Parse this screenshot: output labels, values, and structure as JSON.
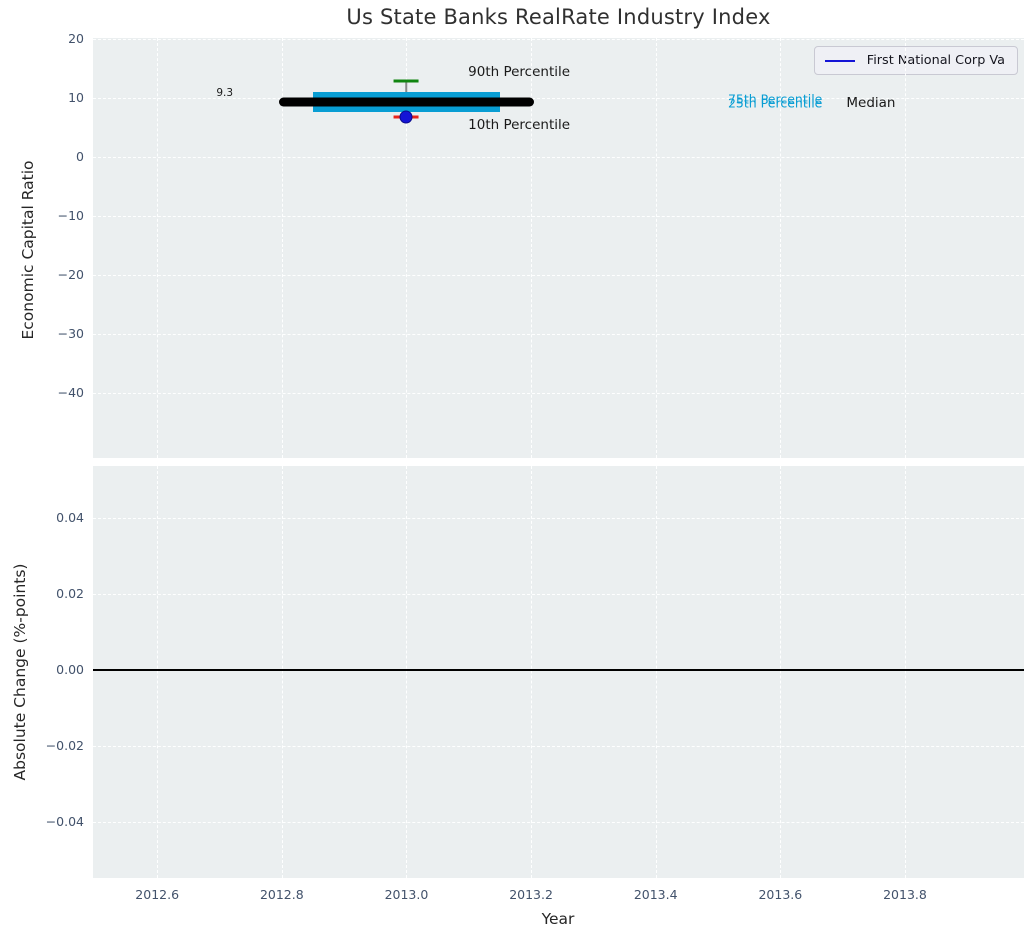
{
  "title": "Us State Banks RealRate Industry Index",
  "legend": {
    "label": "First National Corp Va",
    "line_color": "#1414d6"
  },
  "colors": {
    "plot_background": "#ebeff0",
    "grid": "#ffffff",
    "tick_label": "#42526b",
    "title": "#303030",
    "box_fill": "#089dd3",
    "median_line": "#000000",
    "whisker": "#888888",
    "cap_upper": "#108510",
    "cap_lower": "#e8251c",
    "point": "#1414d6",
    "zero_line": "#000000",
    "percentile_label": "#089dd3"
  },
  "chart_data": [
    {
      "type": "boxplot",
      "title": "Us State Banks RealRate Industry Index",
      "xlabel": "Year",
      "ylabel": "Economic Capital Ratio",
      "xlim": [
        2012.497,
        2013.991
      ],
      "ylim": [
        -51.0,
        20.2
      ],
      "grid": true,
      "legend_position": "upper right",
      "xtick_values": [
        2012.6,
        2012.8,
        2013.0,
        2013.2,
        2013.4,
        2013.6,
        2013.8
      ],
      "xtick_labels": [
        "2012.6",
        "2012.8",
        "2013.0",
        "2013.2",
        "2013.4",
        "2013.6",
        "2013.8"
      ],
      "ytick_values": [
        20,
        10,
        0,
        -10,
        -20,
        -30,
        -40
      ],
      "ytick_labels": [
        "20",
        "10",
        "0",
        "−10",
        "−20",
        "−30",
        "−40"
      ],
      "box": {
        "x": 2013.0,
        "median": 9.3,
        "median_span": [
          2012.795,
          2013.205
        ],
        "q1": 7.6,
        "q3": 11.0,
        "box_span": [
          2012.85,
          2013.15
        ],
        "p10": 6.8,
        "p90": 12.9,
        "cap_halfwidth": 0.02
      },
      "series": [
        {
          "name": "First National Corp Va",
          "x": [
            2013.0
          ],
          "y": [
            6.8
          ]
        }
      ],
      "annotations": [
        {
          "name": "median-value-label",
          "text": "9.3",
          "x": 2012.695,
          "y": 10.9,
          "color": "#1a1a1a",
          "size": 10.5
        },
        {
          "name": "p90-label",
          "text": "90th Percentile",
          "x": 2013.099,
          "y": 14.4,
          "color": "#1a1a1a",
          "size": 13.5
        },
        {
          "name": "p10-label",
          "text": "10th Percentile",
          "x": 2013.099,
          "y": 5.4,
          "color": "#1a1a1a",
          "size": 13.5
        },
        {
          "name": "p75-label",
          "text": "75th Percentile",
          "x": 2013.516,
          "y": 9.8,
          "color": "#089dd3",
          "size": 12.5
        },
        {
          "name": "p25-label",
          "text": "25th Percentile",
          "x": 2013.516,
          "y": 9.2,
          "color": "#089dd3",
          "size": 12.5
        },
        {
          "name": "median-label",
          "text": "Median",
          "x": 2013.706,
          "y": 9.25,
          "color": "#1a1a1a",
          "size": 13.5
        }
      ]
    },
    {
      "type": "line",
      "xlabel": "Year",
      "ylabel": "Absolute Change (%-points)",
      "xlim": [
        2012.497,
        2013.991
      ],
      "ylim": [
        -0.0547,
        0.0537
      ],
      "grid": true,
      "xtick_values": [
        2012.6,
        2012.8,
        2013.0,
        2013.2,
        2013.4,
        2013.6,
        2013.8
      ],
      "xtick_labels": [
        "2012.6",
        "2012.8",
        "2013.0",
        "2013.2",
        "2013.4",
        "2013.6",
        "2013.8"
      ],
      "ytick_values": [
        0.04,
        0.02,
        0.0,
        -0.02,
        -0.04
      ],
      "ytick_labels": [
        "0.04",
        "0.02",
        "0.00",
        "−0.02",
        "−0.04"
      ],
      "zero_line": 0.0,
      "series": []
    }
  ]
}
